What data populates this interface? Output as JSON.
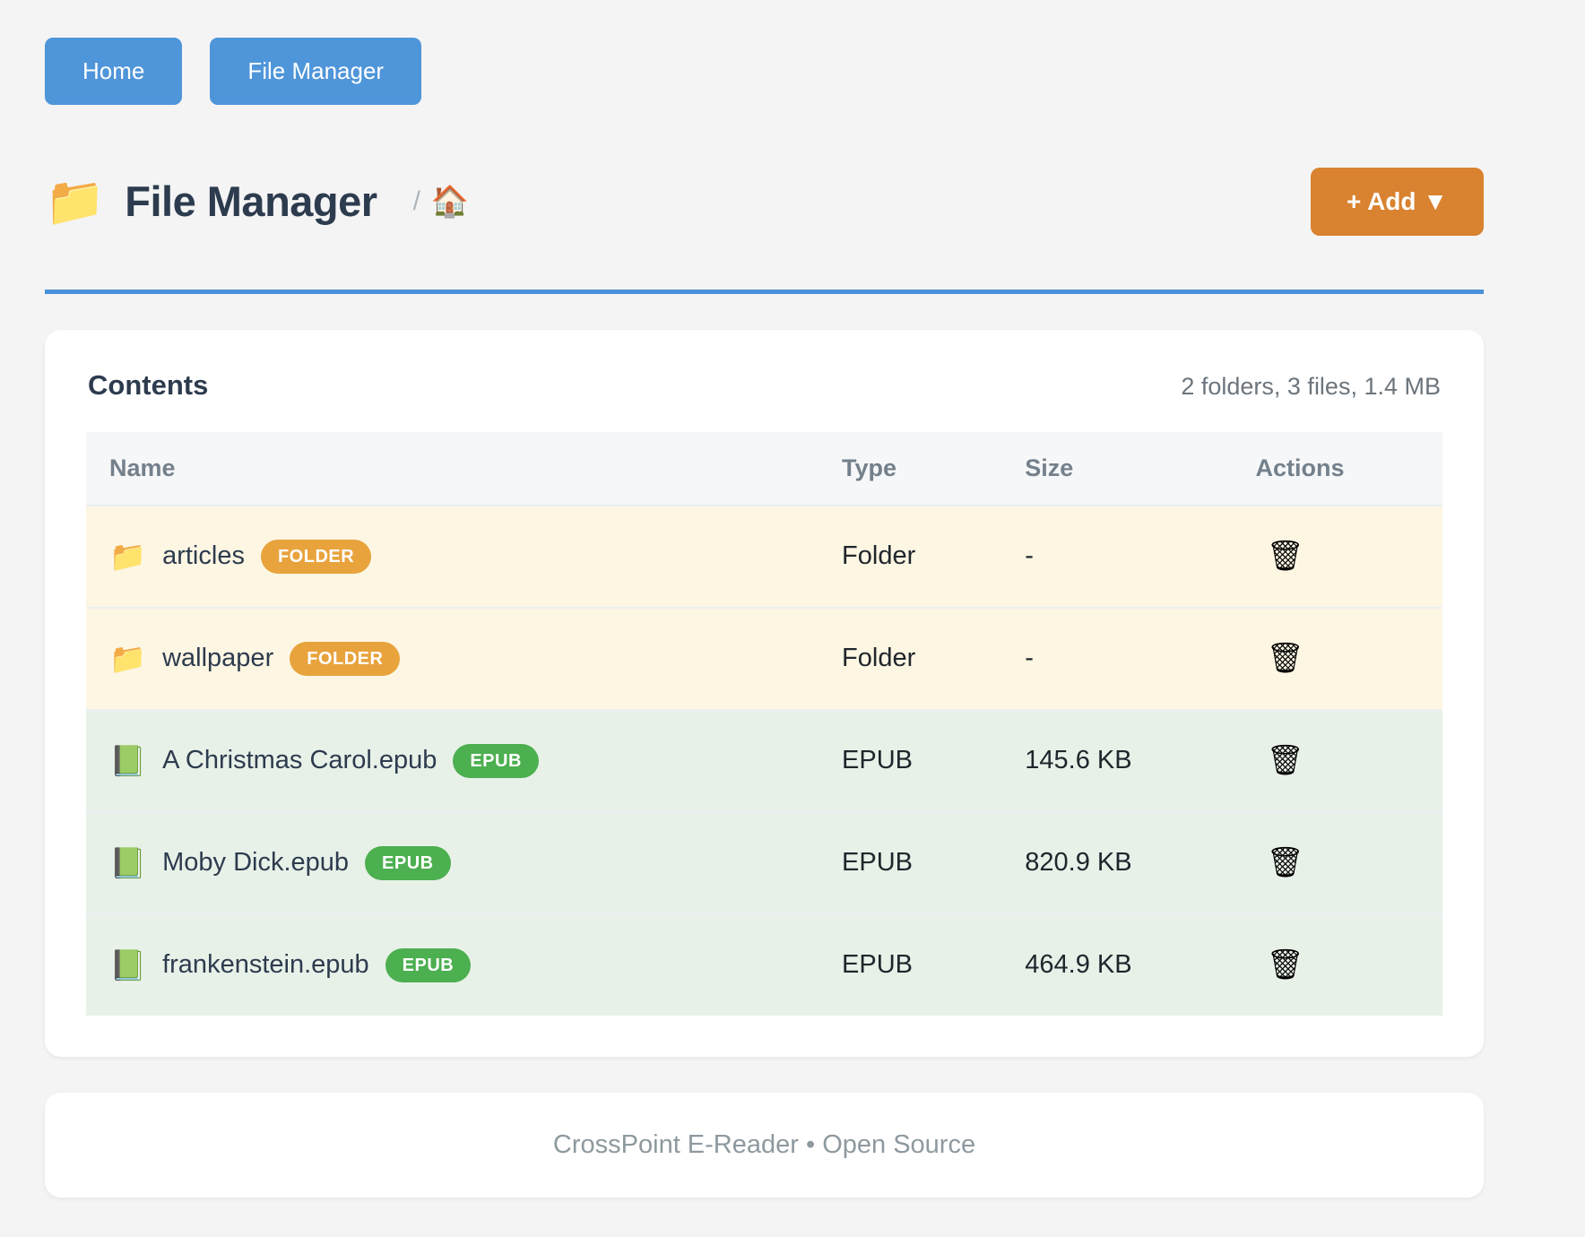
{
  "nav": {
    "home_label": "Home",
    "file_manager_label": "File Manager"
  },
  "header": {
    "folder_icon": "📁",
    "title": "File Manager",
    "breadcrumb_separator": "/",
    "breadcrumb_home_icon": "🏠",
    "add_button_label": "+ Add ▼"
  },
  "card": {
    "title": "Contents",
    "summary": "2 folders, 3 files, 1.4 MB",
    "columns": [
      "Name",
      "Type",
      "Size",
      "Actions"
    ],
    "trash_icon": "🗑",
    "rows": [
      {
        "icon": "📁",
        "name": "articles",
        "badge": "FOLDER",
        "kind": "folder",
        "type": "Folder",
        "size": "-"
      },
      {
        "icon": "📁",
        "name": "wallpaper",
        "badge": "FOLDER",
        "kind": "folder",
        "type": "Folder",
        "size": "-"
      },
      {
        "icon": "📗",
        "name": "A Christmas Carol.epub",
        "badge": "EPUB",
        "kind": "epub",
        "type": "EPUB",
        "size": "145.6 KB"
      },
      {
        "icon": "📗",
        "name": "Moby Dick.epub",
        "badge": "EPUB",
        "kind": "epub",
        "type": "EPUB",
        "size": "820.9 KB"
      },
      {
        "icon": "📗",
        "name": "frankenstein.epub",
        "badge": "EPUB",
        "kind": "epub",
        "type": "EPUB",
        "size": "464.9 KB"
      }
    ]
  },
  "footer": {
    "text": "CrossPoint E-Reader • Open Source"
  },
  "colors": {
    "nav_button": "#4e95d9",
    "add_button": "#d9822f",
    "rule": "#4a91d9",
    "folder_row_bg": "#fdf6e3",
    "epub_row_bg": "#e8f1e8",
    "folder_badge": "#e8a33d",
    "epub_badge": "#4caf50",
    "page_bg": "#f4f4f5"
  }
}
